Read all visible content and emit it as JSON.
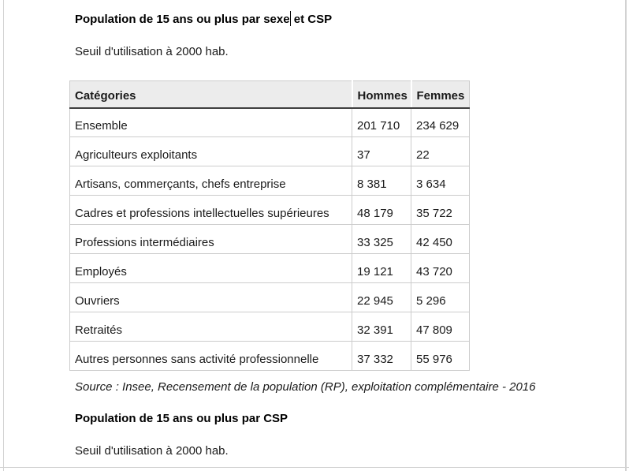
{
  "document": {
    "colors": {
      "table_header_bg": "#ececec",
      "table_border": "#cccccc",
      "header_underline": "#3f3f3f",
      "frame_line": "#d2d2d2",
      "text": "#1a1a1a"
    },
    "section_sexe_csp": {
      "title_before_caret": "Population de 15 ans ou plus par sexe",
      "title_after_caret": " et CSP",
      "threshold_note": "Seuil d'utilisation à 2000 hab.",
      "table": {
        "columns": [
          "Catégories",
          "Hommes",
          "Femmes"
        ],
        "rows": [
          {
            "category": "Ensemble",
            "hommes": "201 710",
            "femmes": "234 629"
          },
          {
            "category": "Agriculteurs exploitants",
            "hommes": "37",
            "femmes": "22"
          },
          {
            "category": "Artisans, commerçants, chefs entreprise",
            "hommes": "8 381",
            "femmes": "3 634"
          },
          {
            "category": "Cadres et professions intellectuelles supérieures",
            "hommes": "48 179",
            "femmes": "35 722"
          },
          {
            "category": "Professions intermédiaires",
            "hommes": "33 325",
            "femmes": "42 450"
          },
          {
            "category": "Employés",
            "hommes": "19 121",
            "femmes": "43 720"
          },
          {
            "category": "Ouvriers",
            "hommes": "22 945",
            "femmes": "5 296"
          },
          {
            "category": "Retraités",
            "hommes": "32 391",
            "femmes": "47 809"
          },
          {
            "category": "Autres personnes sans activité professionnelle",
            "hommes": "37 332",
            "femmes": "55 976"
          }
        ]
      },
      "source": "Source : Insee, Recensement de la population (RP), exploitation complémentaire - 2016"
    },
    "section_csp": {
      "title": "Population de 15 ans ou plus par CSP",
      "threshold_note": "Seuil d'utilisation à 2000 hab."
    }
  }
}
